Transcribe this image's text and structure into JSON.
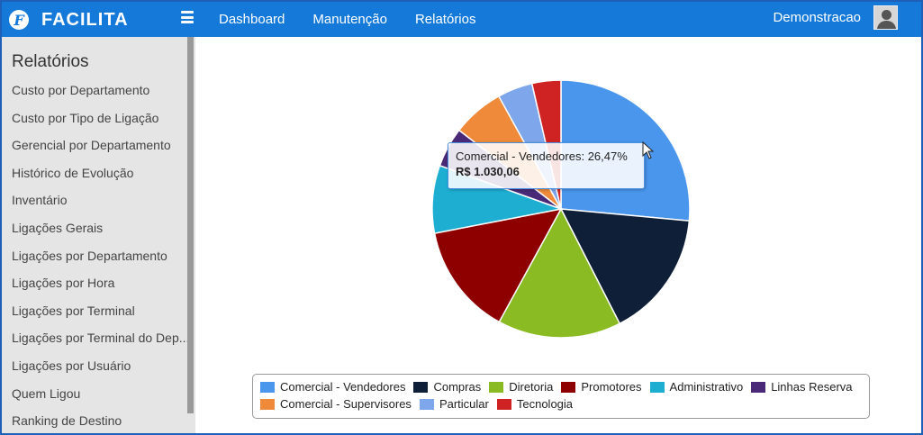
{
  "app": {
    "logo_text": "FACILITA",
    "logo_mark": "F"
  },
  "nav": {
    "items": [
      "Dashboard",
      "Manutenção",
      "Relatórios"
    ]
  },
  "user": {
    "name": "Demonstracao"
  },
  "sidebar": {
    "title": "Relatórios",
    "items": [
      "Custo por Departamento",
      "Custo por Tipo de Ligação",
      "Gerencial por Departamento",
      "Histórico de Evolução",
      "Inventário",
      "Ligações Gerais",
      "Ligações por Departamento",
      "Ligações por Hora",
      "Ligações por Terminal",
      "Ligações por Terminal do Dep...",
      "Ligações por Usuário",
      "Quem Ligou",
      "Ranking de Destino"
    ]
  },
  "tooltip": {
    "label": "Comercial - Vendedores",
    "percent": "26,47%",
    "value": "R$ 1.030,06"
  },
  "chart_data": {
    "type": "pie",
    "title": "",
    "series": [
      {
        "name": "Comercial - Vendedores",
        "value": 26.47,
        "color": "#4a96ec"
      },
      {
        "name": "Compras",
        "value": 16.0,
        "color": "#0f1f38"
      },
      {
        "name": "Diretoria",
        "value": 15.5,
        "color": "#8abb22"
      },
      {
        "name": "Promotores",
        "value": 14.0,
        "color": "#8e0000"
      },
      {
        "name": "Administrativo",
        "value": 8.5,
        "color": "#1eaed2"
      },
      {
        "name": "Linhas Reserva",
        "value": 5.0,
        "color": "#4a2a78"
      },
      {
        "name": "Comercial - Supervisores",
        "value": 6.5,
        "color": "#ee8a3a"
      },
      {
        "name": "Particular",
        "value": 4.4,
        "color": "#7ea6ea"
      },
      {
        "name": "Tecnologia",
        "value": 3.63,
        "color": "#cf2323"
      }
    ],
    "legend_position": "bottom"
  }
}
